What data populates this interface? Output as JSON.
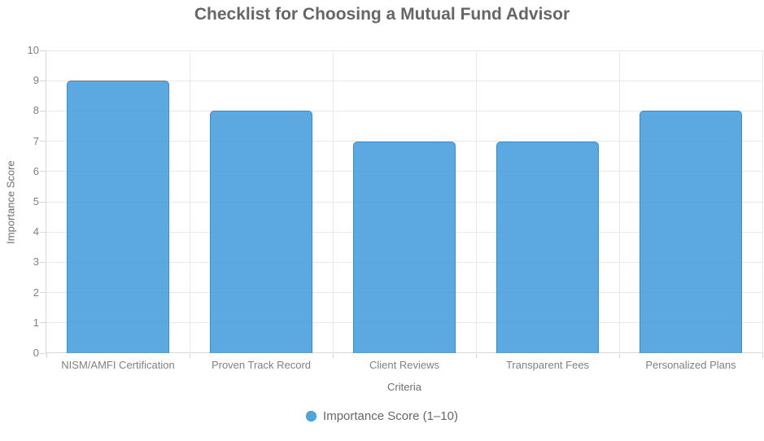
{
  "chart_data": {
    "type": "bar",
    "title": "Checklist for Choosing a Mutual Fund Advisor",
    "categories": [
      "NISM/AMFI Certification",
      "Proven Track Record",
      "Client Reviews",
      "Transparent Fees",
      "Personalized Plans"
    ],
    "values": [
      9,
      8,
      7,
      7,
      8
    ],
    "xlabel": "Criteria",
    "ylabel": "Importance Score",
    "ylim": [
      0,
      10
    ],
    "yticks": [
      0,
      1,
      2,
      3,
      4,
      5,
      6,
      7,
      8,
      9,
      10
    ],
    "grid": true,
    "bar_fill_color": "#5ba9e0",
    "bar_border_color": "#3e96d9",
    "legend": {
      "position": "bottom",
      "entries": [
        {
          "label": "Importance Score (1–10)",
          "color": "#4fa7e0"
        }
      ]
    }
  },
  "colors": {
    "title_text": "#666666",
    "tick_text": "#808080",
    "axis_title_text": "#6e6e6e",
    "gridline": "#e9e9e9",
    "axis_line": "#d6d6d6",
    "background": "#ffffff"
  }
}
